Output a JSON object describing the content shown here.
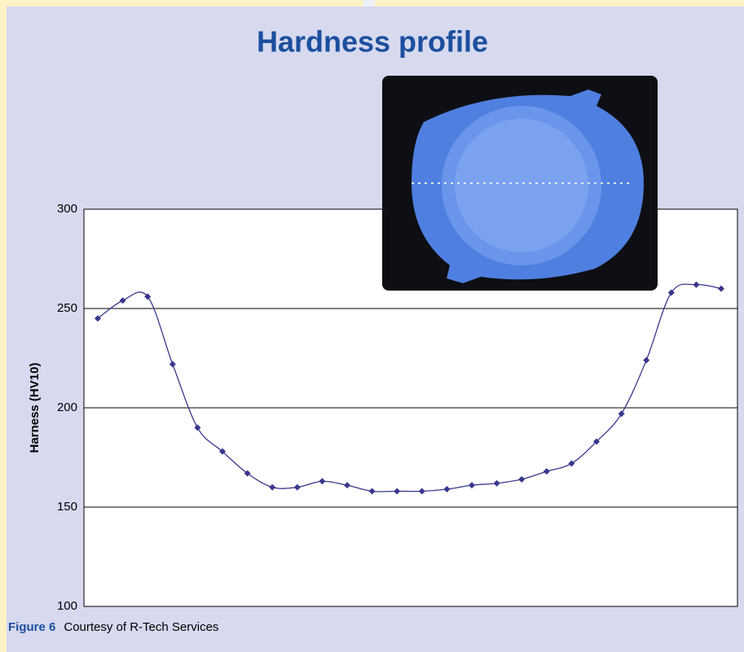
{
  "chart_data": {
    "type": "line",
    "title": "Hardness profile",
    "y_label": "Harness (HV10)",
    "figure_label": "Figure 6",
    "caption": "Courtesy of R-Tech Services",
    "categories": [
      null,
      null,
      null,
      null,
      null,
      null,
      null,
      null,
      null,
      null,
      null,
      null,
      null,
      null,
      null,
      null,
      null,
      null,
      null,
      null,
      null,
      null,
      null,
      null,
      null,
      null
    ],
    "values": [
      245,
      254,
      256,
      222,
      190,
      178,
      167,
      160,
      160,
      163,
      161,
      158,
      158,
      158,
      159,
      161,
      162,
      164,
      168,
      172,
      183,
      197,
      224,
      258,
      262,
      260
    ],
    "color": "#38378c",
    "ylim": [
      100,
      300
    ],
    "yticks": [
      100,
      150,
      200,
      250,
      300
    ],
    "grid": true
  }
}
